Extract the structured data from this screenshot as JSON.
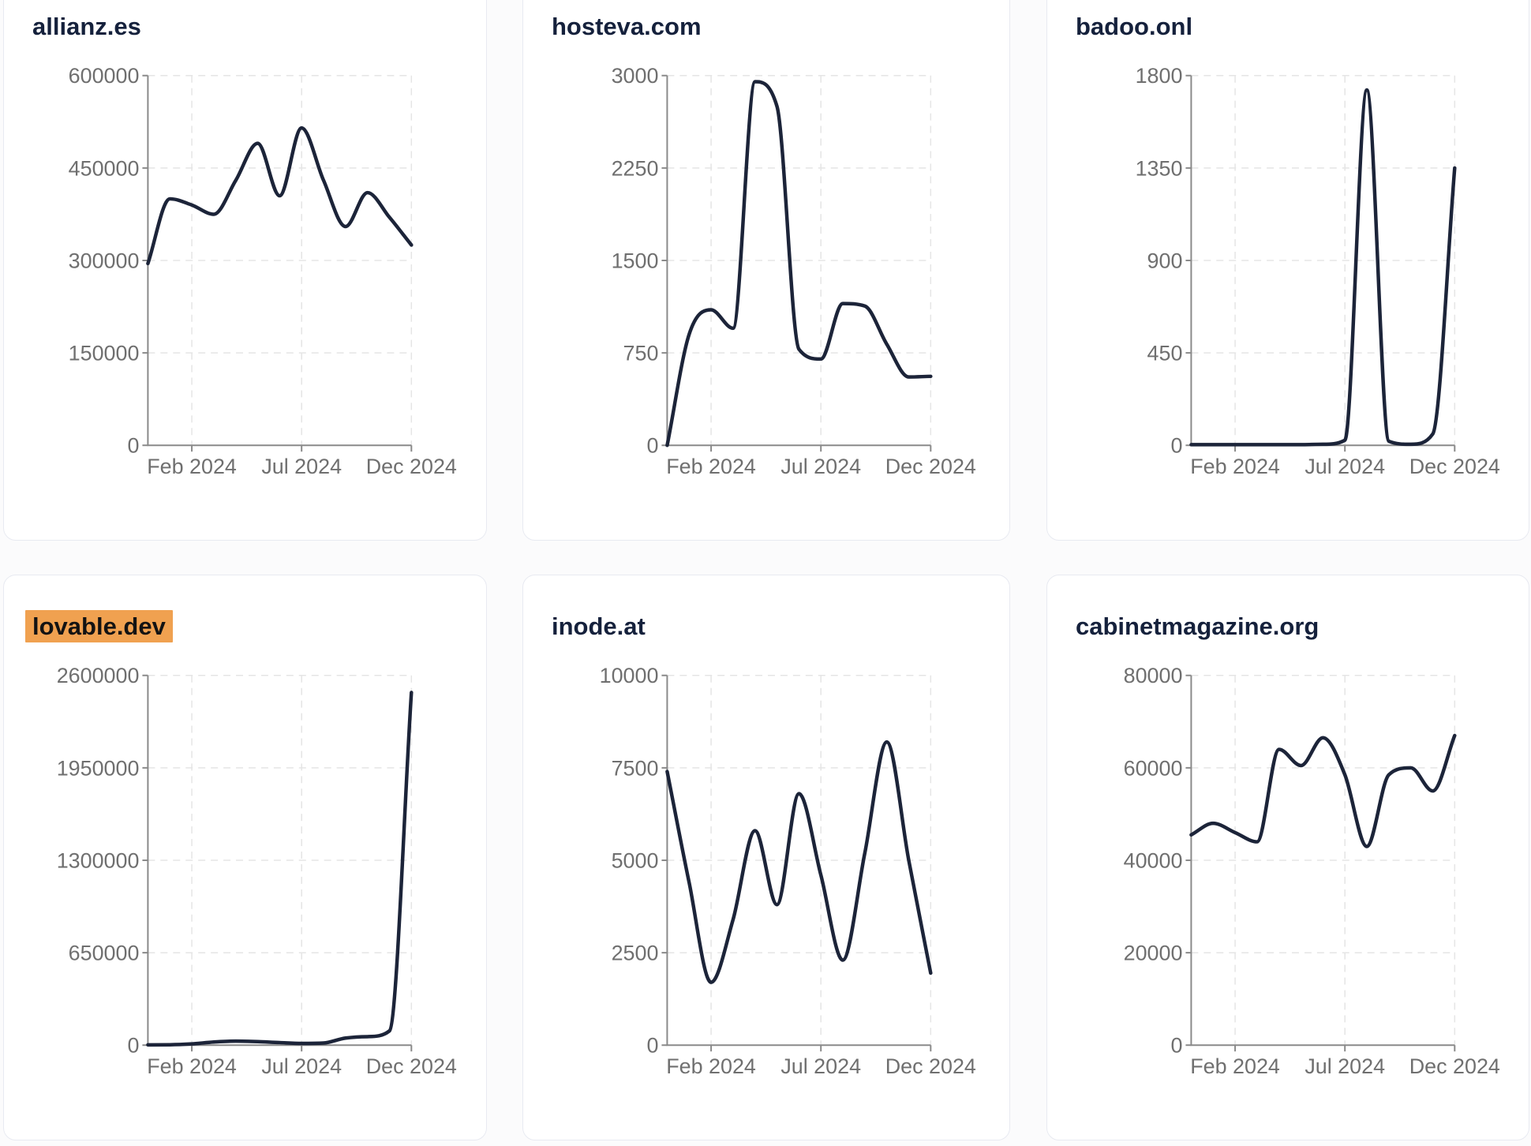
{
  "page": {
    "background_color": "#fbfbfc",
    "card_background": "#ffffff",
    "card_border_color": "#e8eaf1"
  },
  "style": {
    "line_color": "#1c2439",
    "title_color": "#15213c",
    "axis_color": "#8a8a8a",
    "grid_color": "#e5e5e5",
    "tick_label_color": "#6f6f6f",
    "highlight_color": "#f0a150",
    "highlight_text_color": "#131313"
  },
  "chart_data": [
    {
      "type": "line",
      "title": "allianz.es",
      "highlighted": false,
      "xlabel": "",
      "ylabel": "",
      "ylim": [
        0,
        600000
      ],
      "y_ticks": [
        0,
        150000,
        300000,
        450000,
        600000
      ],
      "x_tick_labels": [
        "Feb 2024",
        "Jul 2024",
        "Dec 2024"
      ],
      "x_tick_indices": [
        2,
        7,
        12
      ],
      "x": [
        "Dec 2023",
        "Jan 2024",
        "Feb 2024",
        "Mar 2024",
        "Apr 2024",
        "May 2024",
        "Jun 2024",
        "Jul 2024",
        "Aug 2024",
        "Sep 2024",
        "Oct 2024",
        "Nov 2024",
        "Dec 2024"
      ],
      "values": [
        295000,
        400000,
        390000,
        375000,
        430000,
        490000,
        405000,
        515000,
        430000,
        355000,
        410000,
        370000,
        325000
      ],
      "grid": true,
      "legend": null
    },
    {
      "type": "line",
      "title": "hosteva.com",
      "highlighted": false,
      "xlabel": "",
      "ylabel": "",
      "ylim": [
        0,
        3000
      ],
      "y_ticks": [
        0,
        750,
        1500,
        2250,
        3000
      ],
      "x_tick_labels": [
        "Feb 2024",
        "Jul 2024",
        "Dec 2024"
      ],
      "x_tick_indices": [
        2,
        7,
        12
      ],
      "x": [
        "Dec 2023",
        "Jan 2024",
        "Feb 2024",
        "Mar 2024",
        "Apr 2024",
        "May 2024",
        "Jun 2024",
        "Jul 2024",
        "Aug 2024",
        "Sep 2024",
        "Oct 2024",
        "Nov 2024",
        "Dec 2024"
      ],
      "values": [
        0,
        900,
        1100,
        950,
        2950,
        2750,
        780,
        700,
        1150,
        1130,
        820,
        555,
        560
      ],
      "grid": true,
      "legend": null
    },
    {
      "type": "line",
      "title": "badoo.onl",
      "highlighted": false,
      "xlabel": "",
      "ylabel": "",
      "ylim": [
        0,
        1800
      ],
      "y_ticks": [
        0,
        450,
        900,
        1350,
        1800
      ],
      "x_tick_labels": [
        "Feb 2024",
        "Jul 2024",
        "Dec 2024"
      ],
      "x_tick_indices": [
        2,
        7,
        12
      ],
      "x": [
        "Dec 2023",
        "Jan 2024",
        "Feb 2024",
        "Mar 2024",
        "Apr 2024",
        "May 2024",
        "Jun 2024",
        "Jul 2024",
        "Aug 2024",
        "Sep 2024",
        "Oct 2024",
        "Nov 2024",
        "Dec 2024"
      ],
      "values": [
        3,
        3,
        3,
        3,
        3,
        3,
        5,
        25,
        1730,
        20,
        5,
        55,
        1350
      ],
      "grid": true,
      "legend": null
    },
    {
      "type": "line",
      "title": "lovable.dev",
      "highlighted": true,
      "xlabel": "",
      "ylabel": "",
      "ylim": [
        0,
        2600000
      ],
      "y_ticks": [
        0,
        650000,
        1300000,
        1950000,
        2600000
      ],
      "x_tick_labels": [
        "Feb 2024",
        "Jul 2024",
        "Dec 2024"
      ],
      "x_tick_indices": [
        2,
        7,
        12
      ],
      "x": [
        "Dec 2023",
        "Jan 2024",
        "Feb 2024",
        "Mar 2024",
        "Apr 2024",
        "May 2024",
        "Jun 2024",
        "Jul 2024",
        "Aug 2024",
        "Sep 2024",
        "Oct 2024",
        "Nov 2024",
        "Dec 2024"
      ],
      "values": [
        2000,
        3000,
        9000,
        22000,
        28000,
        25000,
        18000,
        12000,
        15000,
        50000,
        60000,
        100000,
        2480000
      ],
      "grid": true,
      "legend": null
    },
    {
      "type": "line",
      "title": "inode.at",
      "highlighted": false,
      "xlabel": "",
      "ylabel": "",
      "ylim": [
        0,
        10000
      ],
      "y_ticks": [
        0,
        2500,
        5000,
        7500,
        10000
      ],
      "x_tick_labels": [
        "Feb 2024",
        "Jul 2024",
        "Dec 2024"
      ],
      "x_tick_indices": [
        2,
        7,
        12
      ],
      "x": [
        "Dec 2023",
        "Jan 2024",
        "Feb 2024",
        "Mar 2024",
        "Apr 2024",
        "May 2024",
        "Jun 2024",
        "Jul 2024",
        "Aug 2024",
        "Sep 2024",
        "Oct 2024",
        "Nov 2024",
        "Dec 2024"
      ],
      "values": [
        7400,
        4400,
        1700,
        3400,
        5800,
        3800,
        6800,
        4600,
        2300,
        5200,
        8200,
        5000,
        1950
      ],
      "grid": true,
      "legend": null
    },
    {
      "type": "line",
      "title": "cabinetmagazine.org",
      "highlighted": false,
      "xlabel": "",
      "ylabel": "",
      "ylim": [
        0,
        80000
      ],
      "y_ticks": [
        0,
        20000,
        40000,
        60000,
        80000
      ],
      "x_tick_labels": [
        "Feb 2024",
        "Jul 2024",
        "Dec 2024"
      ],
      "x_tick_indices": [
        2,
        7,
        12
      ],
      "x": [
        "Dec 2023",
        "Jan 2024",
        "Feb 2024",
        "Mar 2024",
        "Apr 2024",
        "May 2024",
        "Jun 2024",
        "Jul 2024",
        "Aug 2024",
        "Sep 2024",
        "Oct 2024",
        "Nov 2024",
        "Dec 2024"
      ],
      "values": [
        45500,
        48000,
        46000,
        44000,
        64000,
        60500,
        66500,
        58500,
        43000,
        58500,
        60000,
        55000,
        67000
      ],
      "grid": true,
      "legend": null
    }
  ]
}
